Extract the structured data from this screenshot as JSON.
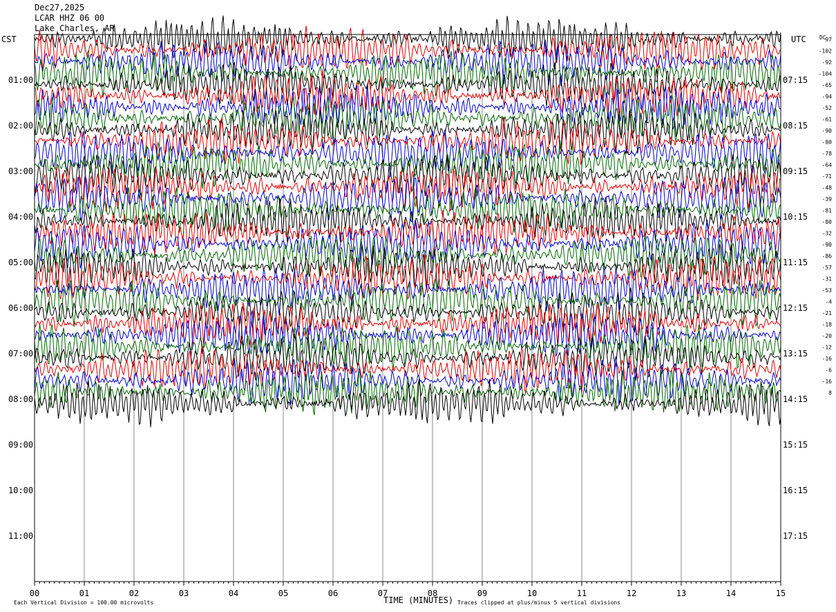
{
  "header": {
    "date": "Dec27,2025",
    "channel": "LCAR HHZ 06 00",
    "station": "Lake Charles, AR"
  },
  "chart_data": {
    "type": "helicorder",
    "left_axis_label": "CST",
    "right_axis_label": "UTC",
    "dc_label": "DC",
    "x_axis_title": "TIME (MINUTES)",
    "x_ticks": [
      "00",
      "01",
      "02",
      "03",
      "04",
      "05",
      "06",
      "07",
      "08",
      "09",
      "10",
      "11",
      "12",
      "13",
      "14",
      "15"
    ],
    "xlim": [
      0,
      15
    ],
    "rows_per_hour": 4,
    "row_minutes": 15,
    "total_rows": 48,
    "recorded_rows": 33,
    "cst_hours": [
      "01:00",
      "02:00",
      "03:00",
      "04:00",
      "05:00",
      "06:00",
      "07:00",
      "08:00",
      "09:00",
      "10:00",
      "11:00"
    ],
    "utc_hours": [
      "07:15",
      "08:15",
      "09:15",
      "10:15",
      "11:15",
      "12:15",
      "13:15",
      "14:15",
      "15:15",
      "16:15",
      "17:15"
    ],
    "dc_offsets": [
      "97",
      "-102",
      "-92",
      "-104",
      "-65",
      "-94",
      "-52",
      "-61",
      "-90",
      "-80",
      "-78",
      "-64",
      "-71",
      "-48",
      "-39",
      "-81",
      "-80",
      "-32",
      "-90",
      "-86",
      "-57",
      "-31",
      "-53",
      "-4",
      "-21",
      "-18",
      "-20",
      "-12",
      "-16",
      "-6",
      "-16",
      "8"
    ],
    "trace_colors": [
      "#000000",
      "#dd0000",
      "#0000cc",
      "#006600"
    ],
    "scale_note": "Each Vertical Division =  100.00 microvolts",
    "clip_note": "Traces clipped at plus/minus 5 vertical divisions"
  }
}
